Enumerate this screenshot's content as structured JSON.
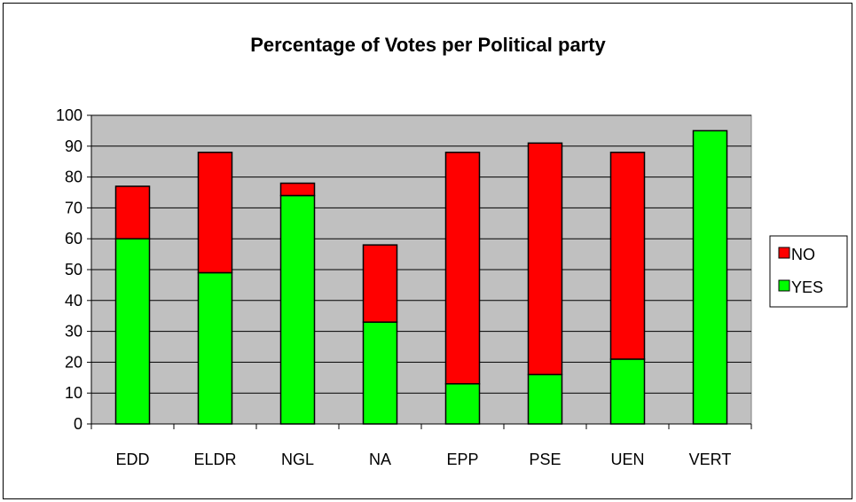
{
  "chart_data": {
    "type": "bar",
    "stacked": true,
    "title": "Percentage of Votes per Political party",
    "categories": [
      "EDD",
      "ELDR",
      "NGL",
      "NA",
      "EPP",
      "PSE",
      "UEN",
      "VERT"
    ],
    "series": [
      {
        "name": "YES",
        "color": "#00ff00",
        "values": [
          60,
          49,
          74,
          33,
          13,
          16,
          21,
          95
        ]
      },
      {
        "name": "NO",
        "color": "#ff0000",
        "values": [
          17,
          39,
          4,
          25,
          75,
          75,
          67,
          0
        ]
      }
    ],
    "ylim": [
      0,
      100
    ],
    "yticks": [
      0,
      10,
      20,
      30,
      40,
      50,
      60,
      70,
      80,
      90,
      100
    ],
    "plot_background": "#c0c0c0",
    "grid": true,
    "legend": {
      "position": "right",
      "items": [
        "NO",
        "YES"
      ]
    }
  }
}
